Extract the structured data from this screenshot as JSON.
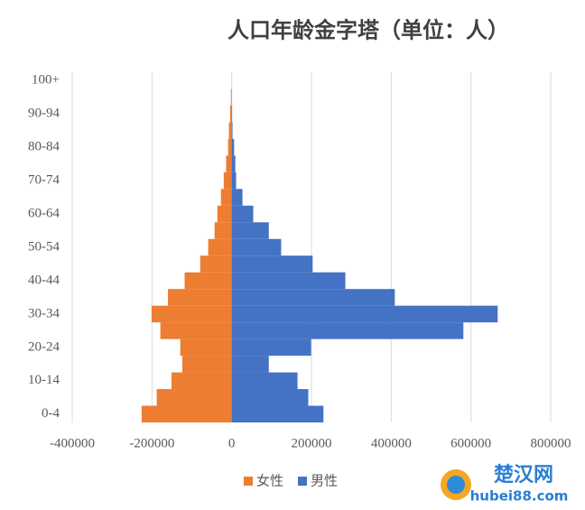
{
  "chart_data": {
    "type": "bar",
    "orientation": "horizontal",
    "title": "人口年龄金字塔（单位：人）",
    "categories": [
      "0-4",
      null,
      "10-14",
      null,
      "20-24",
      null,
      "30-34",
      null,
      "40-44",
      null,
      "50-54",
      null,
      "60-64",
      null,
      "70-74",
      null,
      "80-84",
      null,
      "90-94",
      null,
      "100+"
    ],
    "series": [
      {
        "name": "女性",
        "color": "#ed7d31",
        "values": [
          -226000,
          -188000,
          -151000,
          -124000,
          -129000,
          -179000,
          -201000,
          -160000,
          -118000,
          -79000,
          -59000,
          -43000,
          -36000,
          -27000,
          -20000,
          -14000,
          -9000,
          -7000,
          -4000,
          -2000,
          0
        ]
      },
      {
        "name": "男性",
        "color": "#4472c4",
        "values": [
          230000,
          192000,
          165000,
          93000,
          199000,
          581000,
          667000,
          409000,
          285000,
          203000,
          124000,
          93000,
          54000,
          27000,
          11000,
          9000,
          6000,
          2000,
          1000,
          0,
          0
        ]
      }
    ],
    "xlim": [
      -400000,
      800000
    ],
    "xticks": [
      -400000,
      -200000,
      0,
      200000,
      400000,
      600000,
      800000
    ],
    "grid": true,
    "legend": "bottom",
    "watermark": {
      "name": "楚汉网",
      "url": "hubei88.com"
    }
  }
}
